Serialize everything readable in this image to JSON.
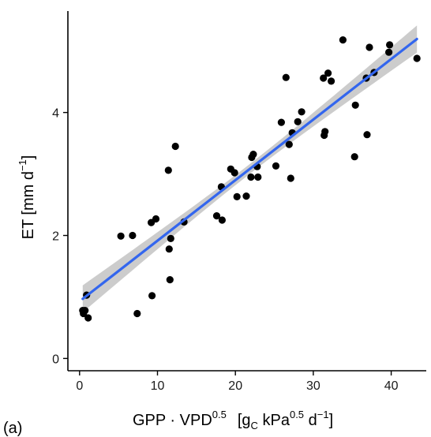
{
  "chart_data": {
    "type": "scatter",
    "panel_label": "(a)",
    "xlabel": {
      "base": "GPP · VPD",
      "base_sup": "0.5",
      "unit_open": "[g",
      "unit_sub": "C",
      "unit_mid": " kPa",
      "unit_sup1": "0.5",
      "unit_d": " d",
      "unit_sup2": "−1",
      "unit_close": "]"
    },
    "ylabel": {
      "main": "ET [mm d",
      "sup": "−1",
      "close": "]"
    },
    "xlim": [
      -1.5,
      44.5
    ],
    "ylim": [
      -0.2,
      5.65
    ],
    "x_ticks": [
      0,
      10,
      20,
      30,
      40
    ],
    "y_ticks": [
      0,
      2,
      4
    ],
    "grid": false,
    "colors": {
      "points": "#000000",
      "fit_line": "#3366ee",
      "confidence_band": "#cccccc"
    },
    "fit": {
      "intercept": 0.93,
      "slope": 0.0985,
      "x_range": [
        0.4,
        43.3
      ]
    },
    "band_halfwidth": {
      "at_ends": 0.22,
      "at_center": 0.08,
      "center_x": 21.8
    },
    "points": [
      [
        0.4,
        0.78
      ],
      [
        0.5,
        0.73
      ],
      [
        0.7,
        0.78
      ],
      [
        0.9,
        1.03
      ],
      [
        1.1,
        0.66
      ],
      [
        5.3,
        1.99
      ],
      [
        6.8,
        2.0
      ],
      [
        7.4,
        0.73
      ],
      [
        9.2,
        2.21
      ],
      [
        9.3,
        1.02
      ],
      [
        9.8,
        2.27
      ],
      [
        11.4,
        3.06
      ],
      [
        11.5,
        1.78
      ],
      [
        11.6,
        1.28
      ],
      [
        11.7,
        1.95
      ],
      [
        12.3,
        3.45
      ],
      [
        13.4,
        2.22
      ],
      [
        17.6,
        2.32
      ],
      [
        18.2,
        2.79
      ],
      [
        18.3,
        2.25
      ],
      [
        19.4,
        3.08
      ],
      [
        19.9,
        3.02
      ],
      [
        20.2,
        2.63
      ],
      [
        21.4,
        2.64
      ],
      [
        22.0,
        2.95
      ],
      [
        22.1,
        3.27
      ],
      [
        22.3,
        3.32
      ],
      [
        22.8,
        3.12
      ],
      [
        22.9,
        2.95
      ],
      [
        25.2,
        3.13
      ],
      [
        25.9,
        3.84
      ],
      [
        26.5,
        4.57
      ],
      [
        26.9,
        3.48
      ],
      [
        27.1,
        2.93
      ],
      [
        27.3,
        3.67
      ],
      [
        28.0,
        3.85
      ],
      [
        28.5,
        4.01
      ],
      [
        31.3,
        4.56
      ],
      [
        31.4,
        3.63
      ],
      [
        31.5,
        3.69
      ],
      [
        31.9,
        4.64
      ],
      [
        32.3,
        4.51
      ],
      [
        33.8,
        5.18
      ],
      [
        35.3,
        3.28
      ],
      [
        35.4,
        4.12
      ],
      [
        36.8,
        4.56
      ],
      [
        36.9,
        3.64
      ],
      [
        37.2,
        5.06
      ],
      [
        37.8,
        4.65
      ],
      [
        39.7,
        4.98
      ],
      [
        39.8,
        5.1
      ],
      [
        43.3,
        4.88
      ]
    ]
  }
}
